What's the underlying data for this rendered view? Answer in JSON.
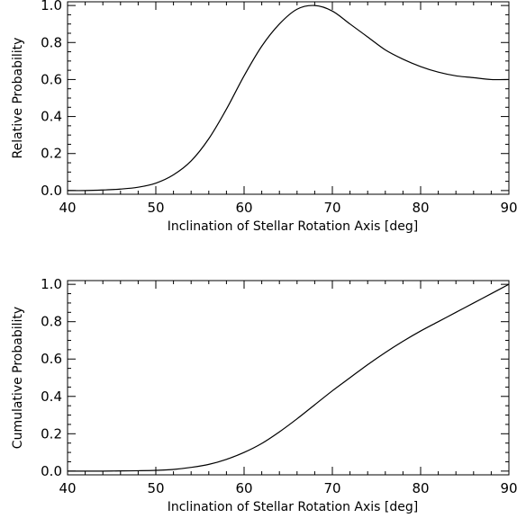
{
  "chart_data": [
    {
      "type": "line",
      "xlabel": "Inclination of Stellar Rotation Axis [deg]",
      "ylabel": "Relative Probability",
      "xlim": [
        40,
        90
      ],
      "ylim": [
        -0.02,
        1.02
      ],
      "xticks": [
        "40",
        "50",
        "60",
        "70",
        "80",
        "90"
      ],
      "yticks": [
        "0.0",
        "0.2",
        "0.4",
        "0.6",
        "0.8",
        "1.0"
      ],
      "grid": false,
      "series": [
        {
          "x": [
            40,
            42,
            44,
            46,
            48,
            50,
            52,
            54,
            56,
            58,
            60,
            62,
            64,
            66,
            68,
            70,
            72,
            74,
            76,
            78,
            80,
            82,
            84,
            86,
            88,
            90
          ],
          "values": [
            0.0,
            0.0,
            0.003,
            0.008,
            0.018,
            0.04,
            0.085,
            0.16,
            0.28,
            0.44,
            0.62,
            0.78,
            0.9,
            0.98,
            1.0,
            0.97,
            0.9,
            0.83,
            0.76,
            0.71,
            0.67,
            0.64,
            0.62,
            0.61,
            0.6,
            0.6
          ]
        }
      ]
    },
    {
      "type": "line",
      "xlabel": "Inclination of Stellar Rotation Axis [deg]",
      "ylabel": "Cumulative Probability",
      "xlim": [
        40,
        90
      ],
      "ylim": [
        -0.02,
        1.02
      ],
      "xticks": [
        "40",
        "50",
        "60",
        "70",
        "80",
        "90"
      ],
      "yticks": [
        "0.0",
        "0.2",
        "0.4",
        "0.6",
        "0.8",
        "1.0"
      ],
      "grid": false,
      "series": [
        {
          "x": [
            40,
            42,
            44,
            46,
            48,
            50,
            52,
            54,
            56,
            58,
            60,
            62,
            64,
            66,
            68,
            70,
            72,
            74,
            76,
            78,
            80,
            82,
            84,
            86,
            88,
            90
          ],
          "values": [
            0.0,
            0.0,
            0.0,
            0.001,
            0.002,
            0.004,
            0.009,
            0.02,
            0.036,
            0.063,
            0.1,
            0.148,
            0.21,
            0.28,
            0.355,
            0.43,
            0.5,
            0.57,
            0.635,
            0.695,
            0.75,
            0.8,
            0.85,
            0.9,
            0.95,
            1.0
          ]
        }
      ]
    }
  ]
}
